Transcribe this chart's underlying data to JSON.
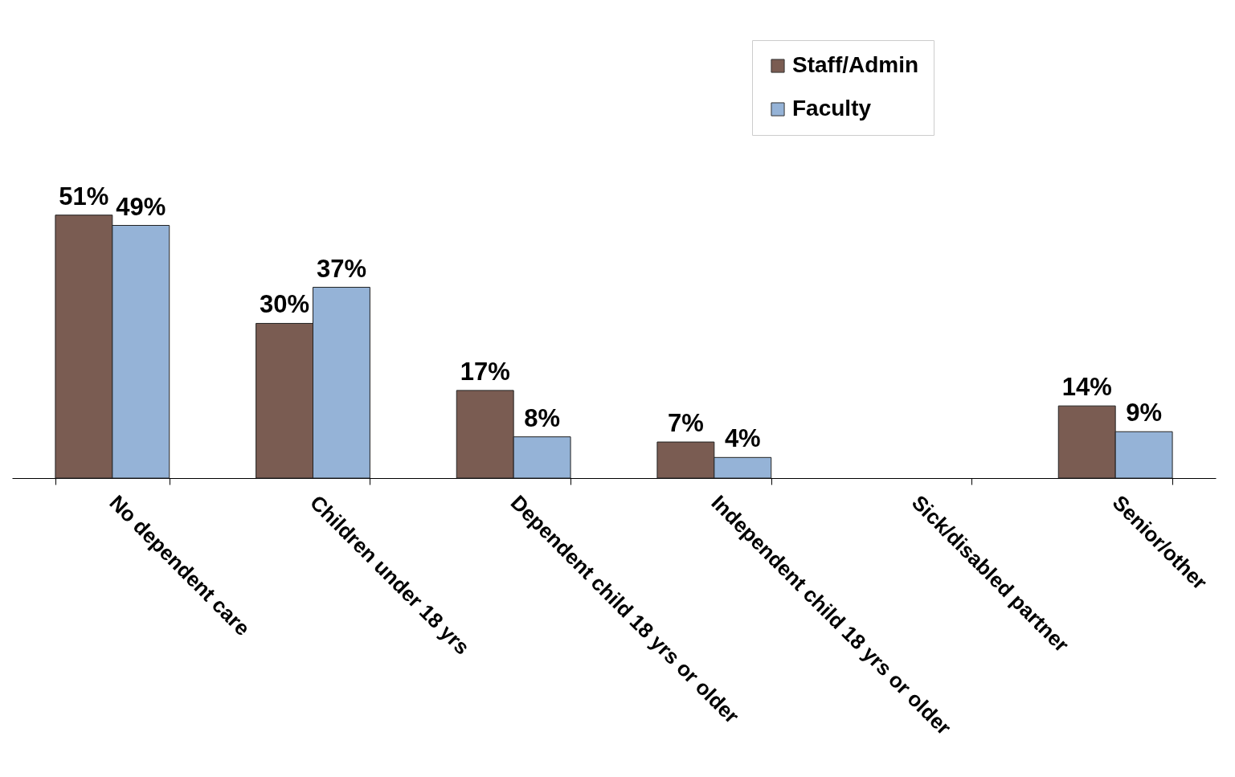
{
  "chart_data": {
    "type": "bar",
    "categories": [
      "No dependent care",
      "Children under 18 yrs",
      "Dependent child 18 yrs or older",
      "Independent child 18 yrs or older",
      "Sick/disabled partner",
      "Senior/other"
    ],
    "series": [
      {
        "name": "Staff/Admin",
        "color": "#7a5c52",
        "values": [
          51,
          30,
          17,
          7,
          null,
          14
        ],
        "value_labels": [
          "51%",
          "30%",
          "17%",
          "7%",
          null,
          "14%"
        ]
      },
      {
        "name": "Faculty",
        "color": "#95b3d7",
        "values": [
          49,
          37,
          8,
          4,
          null,
          9
        ],
        "value_labels": [
          "49%",
          "37%",
          "8%",
          "4%",
          null,
          "9%"
        ]
      }
    ],
    "legend": "top right",
    "grid": false
  }
}
